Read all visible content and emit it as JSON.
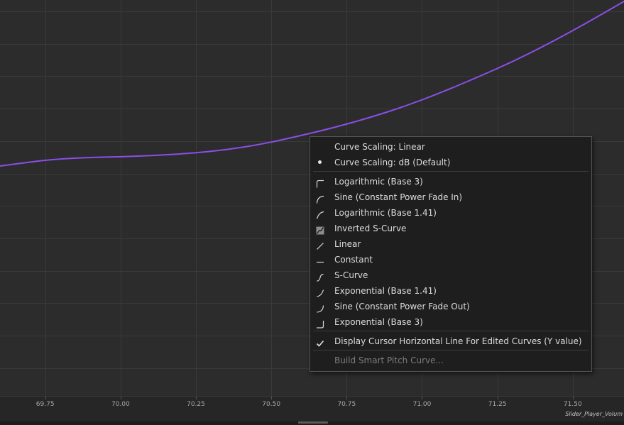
{
  "curve_editor": {
    "x_axis": {
      "min": 69.6,
      "max": 71.67,
      "ticks": [
        {
          "value": 69.75,
          "label": "69.75"
        },
        {
          "value": 70.0,
          "label": "70.00"
        },
        {
          "value": 70.25,
          "label": "70.25"
        },
        {
          "value": 70.5,
          "label": "70.50"
        },
        {
          "value": 70.75,
          "label": "70.75"
        },
        {
          "value": 71.0,
          "label": "71.00"
        },
        {
          "value": 71.25,
          "label": "71.25"
        },
        {
          "value": 71.5,
          "label": "71.50"
        }
      ]
    },
    "curve_color": "#8a4fe8",
    "grid_color": "#3a3a3a",
    "track_name": "Slider_Player_Volum"
  },
  "context_menu": {
    "groups": [
      [
        {
          "label": "Curve Scaling: Linear",
          "icon": "none",
          "enabled": true
        },
        {
          "label": "Curve Scaling: dB (Default)",
          "icon": "selected-dot-icon",
          "enabled": true
        }
      ],
      [
        {
          "label": "Logarithmic (Base 3)",
          "icon": "logarithmic-base3-curve-icon",
          "enabled": true
        },
        {
          "label": "Sine (Constant Power Fade In)",
          "icon": "sine-fade-in-curve-icon",
          "enabled": true
        },
        {
          "label": "Logarithmic (Base 1.41)",
          "icon": "logarithmic-base141-curve-icon",
          "enabled": true
        },
        {
          "label": "Inverted S-Curve",
          "icon": "inverted-s-curve-icon",
          "enabled": true
        },
        {
          "label": "Linear",
          "icon": "linear-curve-icon",
          "enabled": true
        },
        {
          "label": "Constant",
          "icon": "constant-curve-icon",
          "enabled": true
        },
        {
          "label": "S-Curve",
          "icon": "s-curve-icon",
          "enabled": true
        },
        {
          "label": "Exponential (Base 1.41)",
          "icon": "exponential-base141-curve-icon",
          "enabled": true
        },
        {
          "label": "Sine (Constant Power Fade Out)",
          "icon": "sine-fade-out-curve-icon",
          "enabled": true
        },
        {
          "label": "Exponential (Base 3)",
          "icon": "exponential-base3-curve-icon",
          "enabled": true
        }
      ],
      [
        {
          "label": "Display Cursor Horizontal Line For Edited Curves (Y value)",
          "icon": "checkmark-icon",
          "enabled": true
        }
      ],
      [
        {
          "label": "Build Smart Pitch Curve...",
          "icon": "none",
          "enabled": false
        }
      ]
    ]
  }
}
